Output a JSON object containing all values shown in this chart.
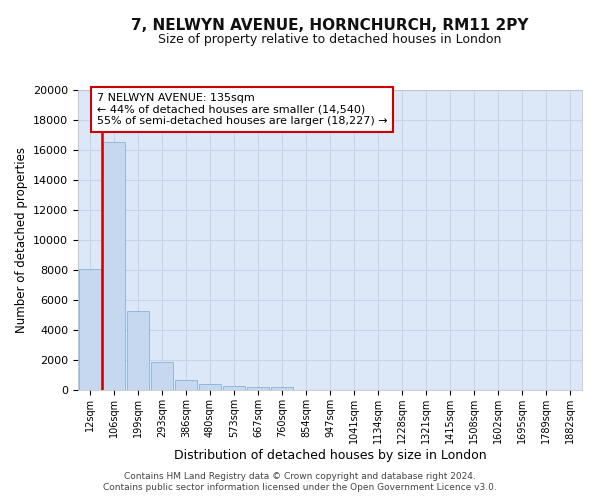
{
  "title": "7, NELWYN AVENUE, HORNCHURCH, RM11 2PY",
  "subtitle": "Size of property relative to detached houses in London",
  "xlabel": "Distribution of detached houses by size in London",
  "ylabel": "Number of detached properties",
  "bar_color": "#c5d8f0",
  "bar_edge_color": "#7aaad0",
  "bin_labels": [
    "12sqm",
    "106sqm",
    "199sqm",
    "293sqm",
    "386sqm",
    "480sqm",
    "573sqm",
    "667sqm",
    "760sqm",
    "854sqm",
    "947sqm",
    "1041sqm",
    "1134sqm",
    "1228sqm",
    "1321sqm",
    "1415sqm",
    "1508sqm",
    "1602sqm",
    "1695sqm",
    "1789sqm",
    "1882sqm"
  ],
  "bar_heights": [
    8100,
    16500,
    5300,
    1850,
    700,
    370,
    290,
    210,
    200,
    0,
    0,
    0,
    0,
    0,
    0,
    0,
    0,
    0,
    0,
    0,
    0
  ],
  "ylim": [
    0,
    20000
  ],
  "yticks": [
    0,
    2000,
    4000,
    6000,
    8000,
    10000,
    12000,
    14000,
    16000,
    18000,
    20000
  ],
  "vline_color": "#cc0000",
  "annotation_title": "7 NELWYN AVENUE: 135sqm",
  "annotation_line1": "← 44% of detached houses are smaller (14,540)",
  "annotation_line2": "55% of semi-detached houses are larger (18,227) →",
  "annotation_box_color": "#ffffff",
  "annotation_box_edge": "#cc0000",
  "grid_color": "#c8d4e8",
  "background_color": "#dce8f8",
  "footer_line1": "Contains HM Land Registry data © Crown copyright and database right 2024.",
  "footer_line2": "Contains public sector information licensed under the Open Government Licence v3.0."
}
